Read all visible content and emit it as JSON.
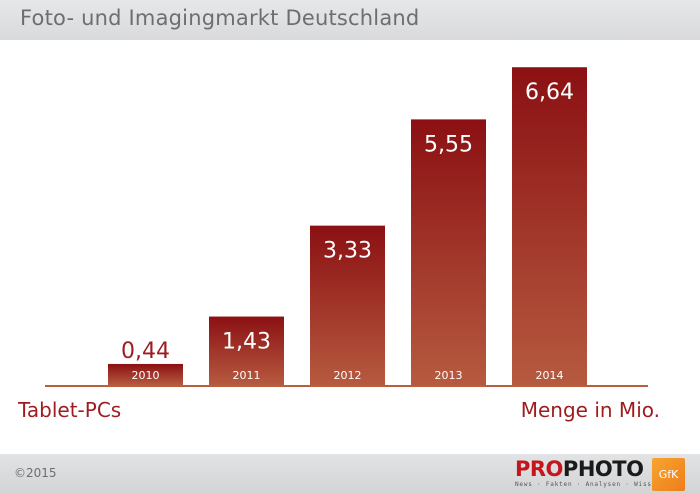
{
  "header": {
    "title": "Foto- und Imagingmarkt Deutschland"
  },
  "chart_data": {
    "type": "bar",
    "categories": [
      "2010",
      "2011",
      "2012",
      "2013",
      "2014"
    ],
    "values": [
      0.44,
      1.43,
      3.33,
      5.55,
      6.64
    ],
    "data_labels": [
      "0,44",
      "1,43",
      "3,33",
      "5,55",
      "6,64"
    ],
    "title": "Foto- und Imagingmarkt Deutschland",
    "xlabel": "",
    "ylabel": "",
    "series": [
      {
        "name": "Tablet-PCs",
        "values": [
          0.44,
          1.43,
          3.33,
          5.55,
          6.64
        ]
      }
    ],
    "ylim": [
      0,
      7
    ],
    "grid": false,
    "legend": "bottom-left",
    "unit_label": "Menge in Mio.",
    "bar_color_top": "#8b1013",
    "bar_color_bottom": "#b65a3f",
    "baseline_color": "#b85f3f"
  },
  "labels": {
    "series": "Tablet-PCs",
    "unit": "Menge in Mio."
  },
  "footer": {
    "copyright": "©2015",
    "logo_part1": "PRO",
    "logo_part2": "PHOTO",
    "logo_tagline": "News · Fakten · Analysen · Wissen",
    "partner": "GfK"
  }
}
